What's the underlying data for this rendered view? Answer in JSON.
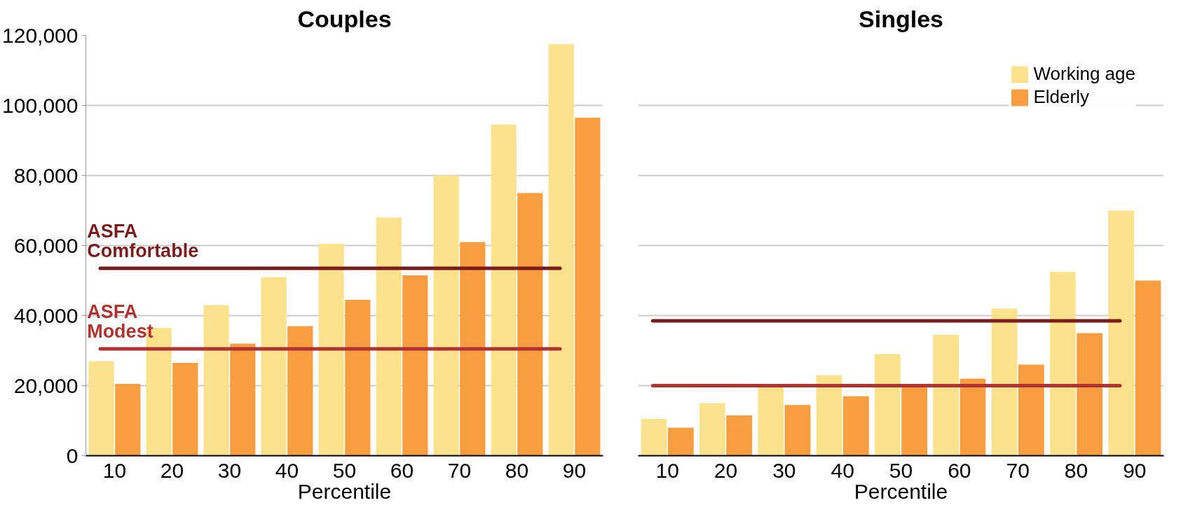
{
  "chart_data": [
    {
      "type": "bar",
      "title": "Couples",
      "xlabel": "Percentile",
      "categories": [
        "10",
        "20",
        "30",
        "40",
        "50",
        "60",
        "70",
        "80",
        "90"
      ],
      "series": [
        {
          "color": "#fde28e",
          "values": [
            27000,
            36500,
            43000,
            51000,
            60500,
            68000,
            80000,
            94500,
            117500
          ]
        },
        {
          "color": "#f99d41",
          "values": [
            20500,
            26500,
            32000,
            37000,
            44500,
            51500,
            61000,
            75000,
            96500
          ]
        }
      ],
      "ylim": [
        0,
        120000
      ],
      "yticks": [
        {
          "value": 0,
          "label": "0"
        },
        {
          "value": 20000,
          "label": "20,000"
        },
        {
          "value": 40000,
          "label": "40,000"
        },
        {
          "value": 60000,
          "label": "60,000"
        },
        {
          "value": 80000,
          "label": "80,000"
        },
        {
          "value": 100000,
          "label": "100,000"
        },
        {
          "value": 120000,
          "label": "120,000"
        }
      ],
      "ref_lines": [
        {
          "axis": "y",
          "value": 53500,
          "label": "ASFA Comfortable",
          "color": "#7b1c1c"
        },
        {
          "axis": "y",
          "value": 30500,
          "label": "ASFA Modest",
          "color": "#b23232"
        }
      ],
      "grid": "y",
      "legend": false
    },
    {
      "type": "bar",
      "title": "Singles",
      "xlabel": "Percentile",
      "categories": [
        "10",
        "20",
        "30",
        "40",
        "50",
        "60",
        "70",
        "80",
        "90"
      ],
      "series": [
        {
          "name": "Working age",
          "color": "#fde28e",
          "values": [
            10500,
            15000,
            19500,
            23000,
            29000,
            34500,
            42000,
            52500,
            70000
          ]
        },
        {
          "name": "Elderly",
          "color": "#f99d41",
          "values": [
            8000,
            11500,
            14500,
            17000,
            20000,
            22000,
            26000,
            35000,
            50000
          ]
        }
      ],
      "ylim": [
        0,
        120000
      ],
      "yticks": [
        0,
        20000,
        40000,
        60000,
        80000,
        100000,
        120000
      ],
      "ref_lines": [
        {
          "axis": "y",
          "value": 38500,
          "color": "#7b1c1c"
        },
        {
          "axis": "y",
          "value": 20000,
          "color": "#b23232"
        }
      ],
      "grid": "y",
      "legend": "top right",
      "tick_labels": "x"
    }
  ]
}
